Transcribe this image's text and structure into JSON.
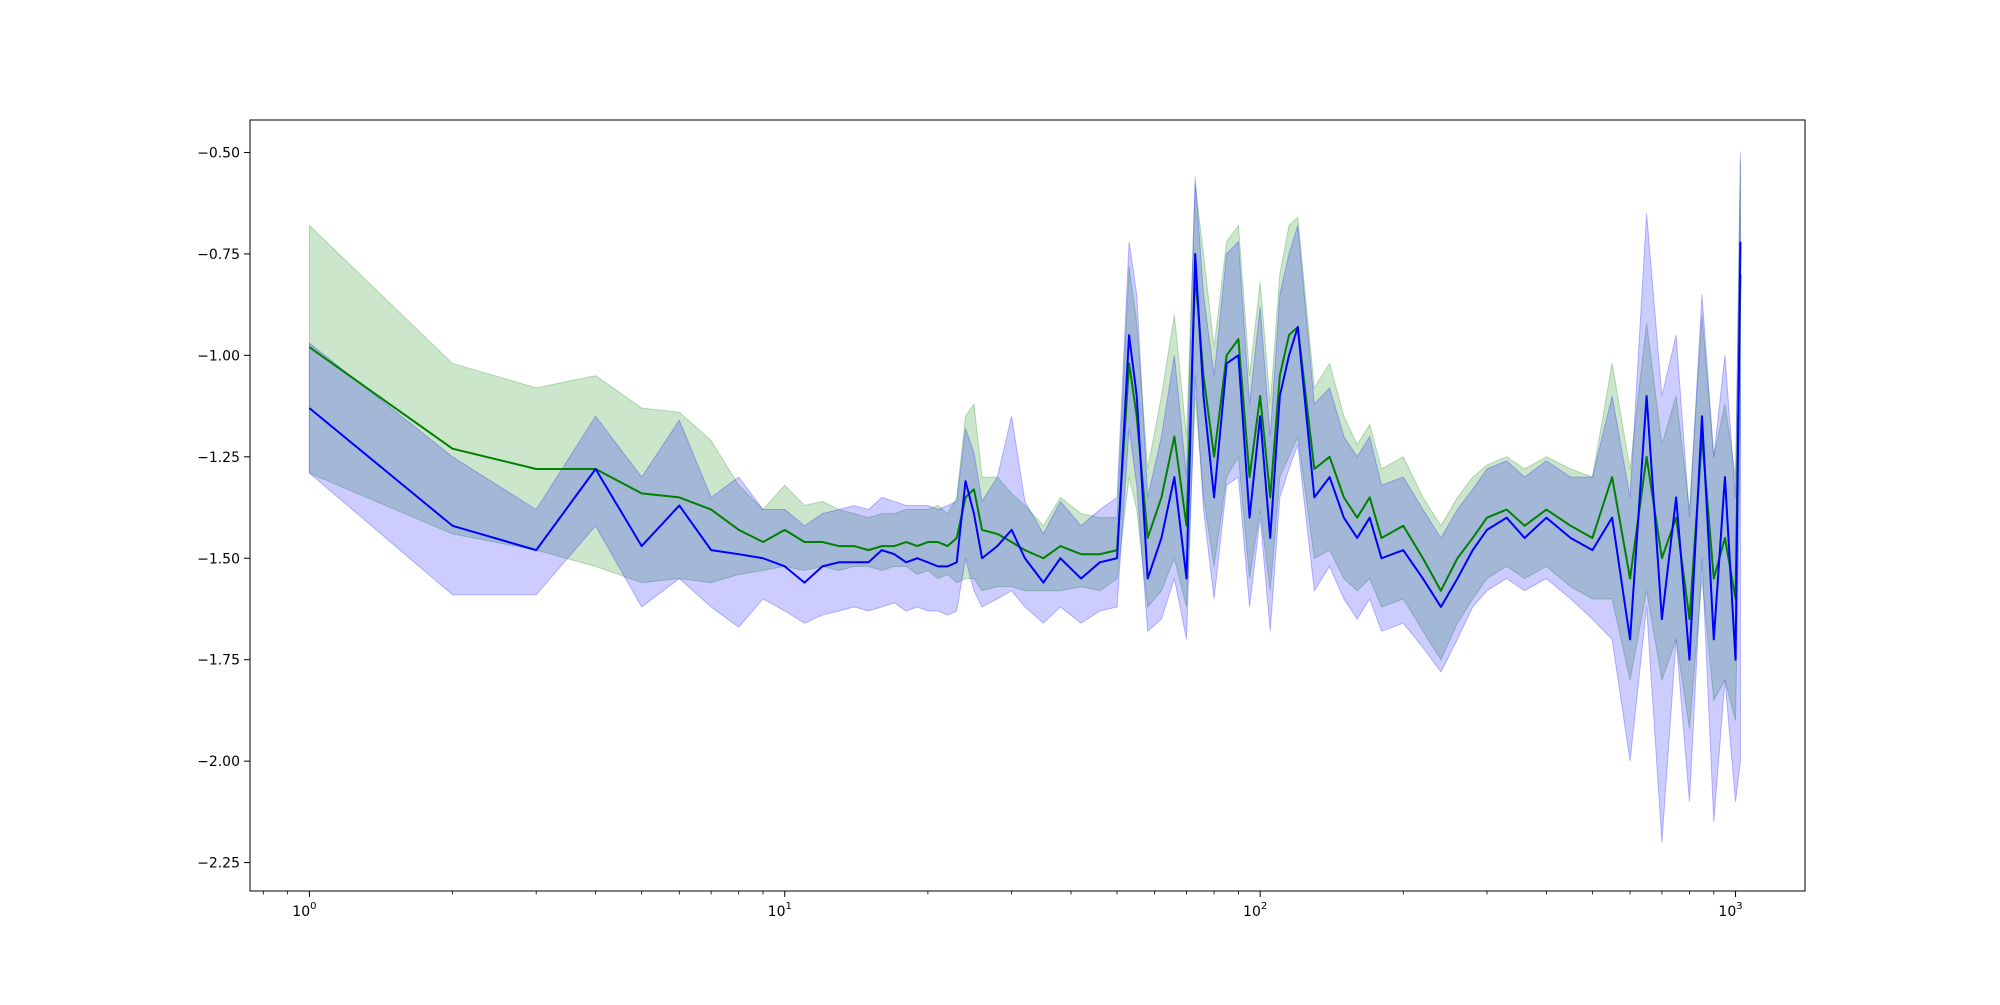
{
  "chart_data": {
    "type": "line",
    "title": "",
    "xlabel": "",
    "ylabel": "",
    "xscale": "log",
    "xlim": [
      0.75,
      1400
    ],
    "ylim": [
      -2.32,
      -0.42
    ],
    "grid": false,
    "legend": "none",
    "x_ticks": [
      {
        "value": 1,
        "label": "10",
        "exp": "0"
      },
      {
        "value": 10,
        "label": "10",
        "exp": "1"
      },
      {
        "value": 100,
        "label": "10",
        "exp": "2"
      },
      {
        "value": 1000,
        "label": "10",
        "exp": "3"
      }
    ],
    "y_ticks": [
      {
        "value": -0.5,
        "label": "−0.50"
      },
      {
        "value": -0.75,
        "label": "−0.75"
      },
      {
        "value": -1.0,
        "label": "−1.00"
      },
      {
        "value": -1.25,
        "label": "−1.25"
      },
      {
        "value": -1.5,
        "label": "−1.50"
      },
      {
        "value": -1.75,
        "label": "−1.75"
      },
      {
        "value": -2.0,
        "label": "−2.00"
      },
      {
        "value": -2.25,
        "label": "−2.25"
      }
    ],
    "series": [
      {
        "color": "#008000",
        "band_color": "#008000",
        "band_opacity": 0.2,
        "x": [
          1,
          2,
          3,
          4,
          5,
          6,
          7,
          8,
          9,
          10,
          11,
          12,
          13,
          14,
          15,
          16,
          17,
          18,
          19,
          20,
          21,
          22,
          23,
          24,
          25,
          26,
          28,
          30,
          32,
          35,
          38,
          42,
          46,
          50,
          53,
          55,
          58,
          62,
          66,
          70,
          73,
          76,
          80,
          85,
          90,
          95,
          100,
          105,
          110,
          115,
          120,
          130,
          140,
          150,
          160,
          170,
          180,
          200,
          220,
          240,
          260,
          280,
          300,
          330,
          360,
          400,
          450,
          500,
          550,
          600,
          650,
          700,
          750,
          800,
          850,
          900,
          950,
          1000,
          1024
        ],
        "y": [
          -0.98,
          -1.23,
          -1.28,
          -1.28,
          -1.34,
          -1.35,
          -1.38,
          -1.43,
          -1.46,
          -1.43,
          -1.46,
          -1.46,
          -1.47,
          -1.47,
          -1.48,
          -1.47,
          -1.47,
          -1.46,
          -1.47,
          -1.46,
          -1.46,
          -1.47,
          -1.45,
          -1.35,
          -1.33,
          -1.43,
          -1.44,
          -1.46,
          -1.48,
          -1.5,
          -1.47,
          -1.49,
          -1.49,
          -1.48,
          -1.02,
          -1.15,
          -1.45,
          -1.35,
          -1.2,
          -1.42,
          -0.8,
          -1.05,
          -1.25,
          -1.0,
          -0.96,
          -1.3,
          -1.1,
          -1.35,
          -1.05,
          -0.95,
          -0.93,
          -1.28,
          -1.25,
          -1.35,
          -1.4,
          -1.35,
          -1.45,
          -1.42,
          -1.5,
          -1.58,
          -1.5,
          -1.45,
          -1.4,
          -1.38,
          -1.42,
          -1.38,
          -1.42,
          -1.45,
          -1.3,
          -1.55,
          -1.25,
          -1.5,
          -1.4,
          -1.65,
          -1.2,
          -1.55,
          -1.45,
          -1.6,
          -0.8
        ],
        "lower": [
          -1.29,
          -1.44,
          -1.48,
          -1.52,
          -1.56,
          -1.55,
          -1.56,
          -1.54,
          -1.53,
          -1.52,
          -1.53,
          -1.52,
          -1.53,
          -1.52,
          -1.52,
          -1.53,
          -1.52,
          -1.52,
          -1.54,
          -1.53,
          -1.55,
          -1.54,
          -1.56,
          -1.55,
          -1.55,
          -1.58,
          -1.57,
          -1.57,
          -1.58,
          -1.58,
          -1.58,
          -1.57,
          -1.58,
          -1.55,
          -1.3,
          -1.38,
          -1.62,
          -1.58,
          -1.5,
          -1.62,
          -1.1,
          -1.35,
          -1.52,
          -1.3,
          -1.25,
          -1.55,
          -1.38,
          -1.58,
          -1.3,
          -1.25,
          -1.2,
          -1.5,
          -1.48,
          -1.55,
          -1.58,
          -1.55,
          -1.62,
          -1.6,
          -1.68,
          -1.75,
          -1.66,
          -1.6,
          -1.55,
          -1.52,
          -1.55,
          -1.52,
          -1.57,
          -1.6,
          -1.6,
          -1.8,
          -1.58,
          -1.8,
          -1.7,
          -1.92,
          -1.55,
          -1.85,
          -1.8,
          -1.9,
          -1.2
        ],
        "upper": [
          -0.68,
          -1.02,
          -1.08,
          -1.05,
          -1.13,
          -1.14,
          -1.21,
          -1.32,
          -1.38,
          -1.32,
          -1.37,
          -1.36,
          -1.38,
          -1.39,
          -1.4,
          -1.39,
          -1.39,
          -1.38,
          -1.38,
          -1.38,
          -1.37,
          -1.39,
          -1.35,
          -1.15,
          -1.12,
          -1.3,
          -1.3,
          -1.34,
          -1.37,
          -1.42,
          -1.35,
          -1.39,
          -1.4,
          -1.4,
          -0.78,
          -0.92,
          -1.28,
          -1.1,
          -0.9,
          -1.2,
          -0.58,
          -0.75,
          -0.98,
          -0.72,
          -0.68,
          -1.05,
          -0.82,
          -1.12,
          -0.8,
          -0.68,
          -0.66,
          -1.08,
          -1.02,
          -1.15,
          -1.22,
          -1.17,
          -1.28,
          -1.25,
          -1.35,
          -1.42,
          -1.35,
          -1.3,
          -1.27,
          -1.25,
          -1.28,
          -1.25,
          -1.28,
          -1.3,
          -1.02,
          -1.28,
          -0.92,
          -1.22,
          -1.1,
          -1.38,
          -0.9,
          -1.25,
          -1.12,
          -1.3,
          -0.52
        ]
      },
      {
        "color": "#0000ff",
        "band_color": "#0000ff",
        "band_opacity": 0.2,
        "x": [
          1,
          2,
          3,
          4,
          5,
          6,
          7,
          8,
          9,
          10,
          11,
          12,
          13,
          14,
          15,
          16,
          17,
          18,
          19,
          20,
          21,
          22,
          23,
          24,
          25,
          26,
          28,
          30,
          32,
          35,
          38,
          42,
          46,
          50,
          53,
          55,
          58,
          62,
          66,
          70,
          73,
          76,
          80,
          85,
          90,
          95,
          100,
          105,
          110,
          115,
          120,
          130,
          140,
          150,
          160,
          170,
          180,
          200,
          220,
          240,
          260,
          280,
          300,
          330,
          360,
          400,
          450,
          500,
          550,
          600,
          650,
          700,
          750,
          800,
          850,
          900,
          950,
          1000,
          1024
        ],
        "y": [
          -1.13,
          -1.42,
          -1.48,
          -1.28,
          -1.47,
          -1.37,
          -1.48,
          -1.49,
          -1.5,
          -1.52,
          -1.56,
          -1.52,
          -1.51,
          -1.51,
          -1.51,
          -1.48,
          -1.49,
          -1.51,
          -1.5,
          -1.51,
          -1.52,
          -1.52,
          -1.51,
          -1.31,
          -1.39,
          -1.5,
          -1.47,
          -1.43,
          -1.5,
          -1.56,
          -1.5,
          -1.55,
          -1.51,
          -1.5,
          -0.95,
          -1.1,
          -1.55,
          -1.45,
          -1.3,
          -1.55,
          -0.75,
          -1.1,
          -1.35,
          -1.02,
          -1.0,
          -1.4,
          -1.15,
          -1.45,
          -1.1,
          -1.0,
          -0.93,
          -1.35,
          -1.3,
          -1.4,
          -1.45,
          -1.4,
          -1.5,
          -1.48,
          -1.55,
          -1.62,
          -1.55,
          -1.48,
          -1.43,
          -1.4,
          -1.45,
          -1.4,
          -1.45,
          -1.48,
          -1.4,
          -1.7,
          -1.1,
          -1.65,
          -1.35,
          -1.75,
          -1.15,
          -1.7,
          -1.3,
          -1.75,
          -0.72
        ],
        "lower": [
          -1.29,
          -1.59,
          -1.59,
          -1.42,
          -1.62,
          -1.55,
          -1.62,
          -1.67,
          -1.6,
          -1.63,
          -1.66,
          -1.64,
          -1.63,
          -1.62,
          -1.63,
          -1.62,
          -1.61,
          -1.63,
          -1.62,
          -1.63,
          -1.63,
          -1.64,
          -1.63,
          -1.5,
          -1.58,
          -1.62,
          -1.6,
          -1.58,
          -1.62,
          -1.66,
          -1.62,
          -1.66,
          -1.63,
          -1.62,
          -1.18,
          -1.32,
          -1.68,
          -1.65,
          -1.55,
          -1.7,
          -1.05,
          -1.38,
          -1.6,
          -1.32,
          -1.3,
          -1.62,
          -1.4,
          -1.68,
          -1.35,
          -1.28,
          -1.22,
          -1.58,
          -1.52,
          -1.6,
          -1.65,
          -1.6,
          -1.68,
          -1.66,
          -1.72,
          -1.78,
          -1.7,
          -1.62,
          -1.58,
          -1.55,
          -1.58,
          -1.55,
          -1.6,
          -1.65,
          -1.7,
          -2.0,
          -1.62,
          -2.2,
          -1.7,
          -2.1,
          -1.5,
          -2.15,
          -1.8,
          -2.1,
          -2.0
        ],
        "upper": [
          -0.97,
          -1.25,
          -1.38,
          -1.15,
          -1.3,
          -1.16,
          -1.35,
          -1.3,
          -1.38,
          -1.38,
          -1.42,
          -1.39,
          -1.38,
          -1.37,
          -1.38,
          -1.35,
          -1.36,
          -1.37,
          -1.37,
          -1.37,
          -1.38,
          -1.37,
          -1.36,
          -1.18,
          -1.24,
          -1.36,
          -1.3,
          -1.15,
          -1.36,
          -1.44,
          -1.36,
          -1.42,
          -1.38,
          -1.35,
          -0.72,
          -0.85,
          -1.35,
          -1.2,
          -1.0,
          -1.3,
          -0.56,
          -0.85,
          -1.05,
          -0.75,
          -0.72,
          -1.12,
          -0.88,
          -1.2,
          -0.85,
          -0.75,
          -0.68,
          -1.12,
          -1.08,
          -1.2,
          -1.25,
          -1.2,
          -1.32,
          -1.3,
          -1.38,
          -1.45,
          -1.38,
          -1.33,
          -1.28,
          -1.26,
          -1.3,
          -1.26,
          -1.3,
          -1.3,
          -1.1,
          -1.35,
          -0.65,
          -1.1,
          -0.95,
          -1.4,
          -0.85,
          -1.25,
          -1.0,
          -1.35,
          -0.5
        ]
      }
    ]
  }
}
